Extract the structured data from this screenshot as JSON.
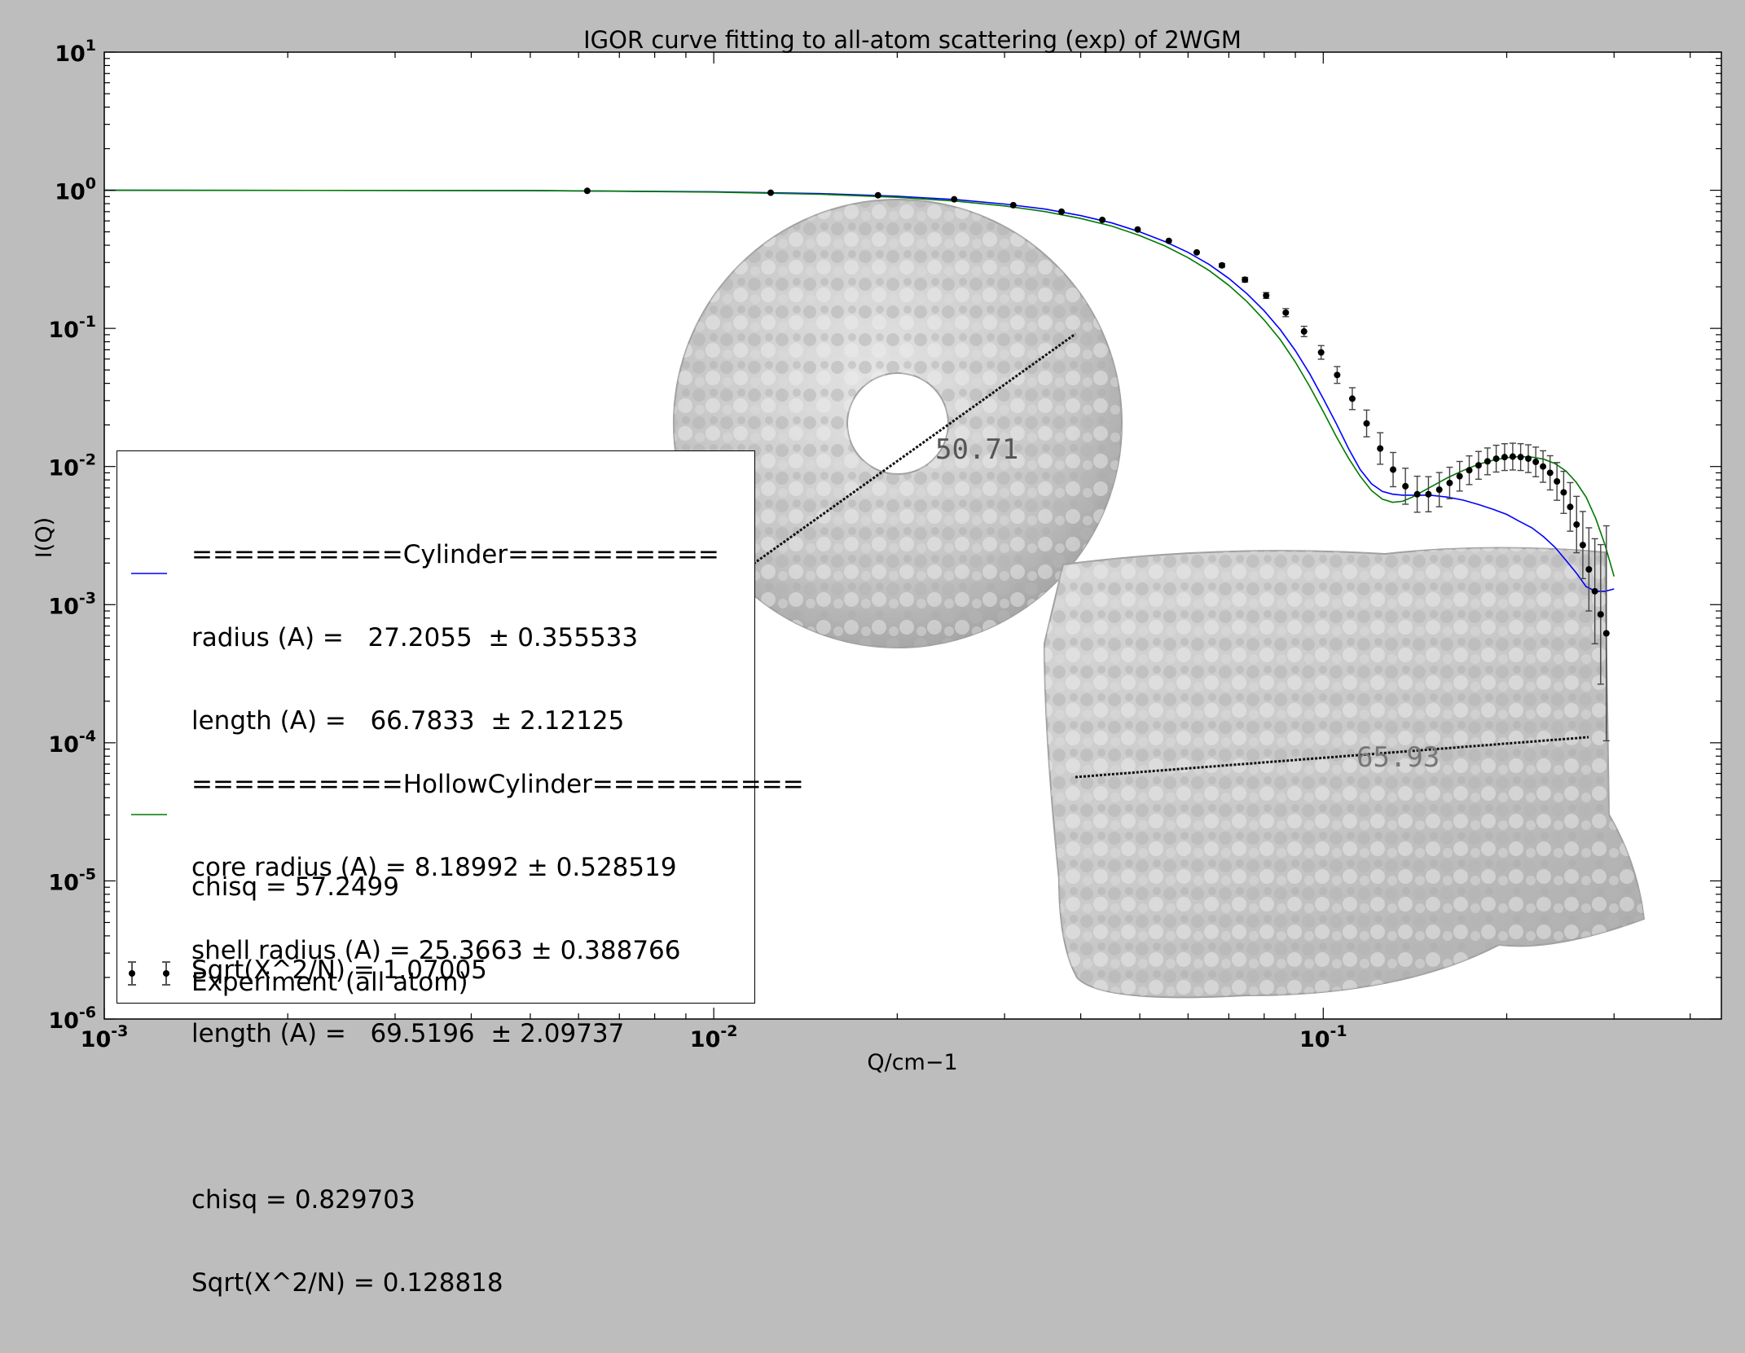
{
  "chart_data": {
    "type": "scatter",
    "title": "IGOR curve fitting to all-atom scattering (exp) of 2WGM",
    "xlabel": "Q/cm−1",
    "ylabel": "I(Q)",
    "x_scale": "log",
    "y_scale": "log",
    "xlim": [
      0.001,
      0.45
    ],
    "ylim": [
      1e-06,
      10
    ],
    "x_ticks": [
      {
        "value": 0.001,
        "base": "10",
        "exp": "-3"
      },
      {
        "value": 0.01,
        "base": "10",
        "exp": "-2"
      },
      {
        "value": 0.1,
        "base": "10",
        "exp": "-1"
      }
    ],
    "y_ticks": [
      {
        "value": 10,
        "base": "10",
        "exp": "1"
      },
      {
        "value": 1,
        "base": "10",
        "exp": "0"
      },
      {
        "value": 0.1,
        "base": "10",
        "exp": "-1"
      },
      {
        "value": 0.01,
        "base": "10",
        "exp": "-2"
      },
      {
        "value": 0.001,
        "base": "10",
        "exp": "-3"
      },
      {
        "value": 0.0001,
        "base": "10",
        "exp": "-4"
      },
      {
        "value": 1e-05,
        "base": "10",
        "exp": "-5"
      },
      {
        "value": 1e-06,
        "base": "10",
        "exp": "-6"
      }
    ],
    "grid": false,
    "legend": "lower-left",
    "series": [
      {
        "name": "Experiment (all atom)",
        "kind": "points-with-errorbars",
        "color": "#000000",
        "x": [
          0.0062,
          0.0124,
          0.0186,
          0.0248,
          0.031,
          0.0372,
          0.0434,
          0.0496,
          0.0558,
          0.062,
          0.0682,
          0.0744,
          0.0806,
          0.0868,
          0.093,
          0.0992,
          0.1054,
          0.1116,
          0.1178,
          0.124,
          0.1302,
          0.1364,
          0.1426,
          0.1488,
          0.155,
          0.1612,
          0.1674,
          0.1736,
          0.1798,
          0.186,
          0.1922,
          0.1984,
          0.2046,
          0.2108,
          0.217,
          0.2232,
          0.2294,
          0.2356,
          0.2418,
          0.248,
          0.2542,
          0.2604,
          0.2666,
          0.2728,
          0.279,
          0.2852,
          0.2914
        ],
        "y": [
          0.99,
          0.96,
          0.92,
          0.86,
          0.78,
          0.7,
          0.61,
          0.52,
          0.43,
          0.355,
          0.286,
          0.225,
          0.173,
          0.13,
          0.095,
          0.067,
          0.046,
          0.031,
          0.0205,
          0.0135,
          0.0095,
          0.0072,
          0.0063,
          0.0063,
          0.0068,
          0.0076,
          0.0085,
          0.0094,
          0.0102,
          0.0109,
          0.0114,
          0.0117,
          0.0118,
          0.0117,
          0.0114,
          0.0108,
          0.01,
          0.009,
          0.0078,
          0.0065,
          0.0051,
          0.0038,
          0.0027,
          0.0018,
          0.00125,
          0.00085,
          0.00062
        ],
        "err_factor": [
          1.01,
          1.01,
          1.01,
          1.01,
          1.01,
          1.01,
          1.01,
          1.015,
          1.015,
          1.02,
          1.03,
          1.04,
          1.05,
          1.07,
          1.09,
          1.12,
          1.15,
          1.2,
          1.25,
          1.3,
          1.33,
          1.35,
          1.35,
          1.34,
          1.33,
          1.3,
          1.28,
          1.27,
          1.26,
          1.25,
          1.25,
          1.25,
          1.25,
          1.25,
          1.26,
          1.28,
          1.3,
          1.33,
          1.37,
          1.42,
          1.5,
          1.6,
          1.75,
          2.0,
          2.4,
          3.2,
          6.0
        ]
      },
      {
        "name": "Cylinder",
        "kind": "line",
        "color": "#0000ff",
        "x": [
          0.001,
          0.005,
          0.01,
          0.015,
          0.02,
          0.025,
          0.03,
          0.035,
          0.04,
          0.045,
          0.05,
          0.055,
          0.06,
          0.065,
          0.07,
          0.075,
          0.08,
          0.085,
          0.09,
          0.095,
          0.1,
          0.105,
          0.11,
          0.115,
          0.12,
          0.125,
          0.13,
          0.135,
          0.14,
          0.15,
          0.16,
          0.17,
          0.18,
          0.19,
          0.2,
          0.21,
          0.22,
          0.23,
          0.24,
          0.25,
          0.26,
          0.27,
          0.28,
          0.29,
          0.3
        ],
        "y": [
          1.0,
          0.995,
          0.975,
          0.945,
          0.905,
          0.855,
          0.795,
          0.73,
          0.655,
          0.58,
          0.5,
          0.425,
          0.355,
          0.29,
          0.23,
          0.178,
          0.134,
          0.098,
          0.069,
          0.047,
          0.031,
          0.0205,
          0.0135,
          0.0095,
          0.0075,
          0.0066,
          0.0063,
          0.0062,
          0.0062,
          0.0062,
          0.006,
          0.0057,
          0.0053,
          0.0049,
          0.0045,
          0.004,
          0.0036,
          0.0031,
          0.0026,
          0.0021,
          0.0017,
          0.00135,
          0.00125,
          0.00125,
          0.0013
        ]
      },
      {
        "name": "HollowCylinder",
        "kind": "line",
        "color": "#007a00",
        "x": [
          0.001,
          0.005,
          0.01,
          0.015,
          0.02,
          0.025,
          0.03,
          0.035,
          0.04,
          0.045,
          0.05,
          0.055,
          0.06,
          0.065,
          0.07,
          0.075,
          0.08,
          0.085,
          0.09,
          0.095,
          0.1,
          0.105,
          0.11,
          0.115,
          0.12,
          0.125,
          0.13,
          0.135,
          0.14,
          0.15,
          0.16,
          0.17,
          0.18,
          0.19,
          0.2,
          0.21,
          0.22,
          0.23,
          0.24,
          0.25,
          0.26,
          0.27,
          0.28,
          0.29,
          0.3
        ],
        "y": [
          1.0,
          0.995,
          0.97,
          0.935,
          0.89,
          0.835,
          0.77,
          0.7,
          0.625,
          0.55,
          0.47,
          0.395,
          0.325,
          0.262,
          0.205,
          0.156,
          0.115,
          0.083,
          0.057,
          0.038,
          0.025,
          0.0165,
          0.0115,
          0.0085,
          0.0067,
          0.0058,
          0.0055,
          0.0056,
          0.006,
          0.0071,
          0.0083,
          0.0094,
          0.0104,
          0.0111,
          0.0116,
          0.0118,
          0.0117,
          0.0113,
          0.0105,
          0.0093,
          0.0077,
          0.006,
          0.0042,
          0.0027,
          0.0016
        ]
      }
    ],
    "annotations": [
      {
        "label": "50.71"
      },
      {
        "label": "65.93"
      }
    ]
  },
  "legend": {
    "cylinder": {
      "header": "==========Cylinder==========",
      "lines": [
        "radius (A) =   27.2055  ± 0.355533",
        "length (A) =   66.7833  ± 2.12125",
        "",
        "chisq = 57.2499",
        "Sqrt(X^2/N) = 1.07005"
      ]
    },
    "hollow": {
      "header": "==========HollowCylinder==========",
      "lines": [
        "core radius (A) = 8.18992 ± 0.528519",
        "shell radius (A) = 25.3663 ± 0.388766",
        "length (A) =   69.5196  ± 2.09737",
        "",
        "chisq = 0.829703",
        "Sqrt(X^2/N) = 0.128818"
      ]
    },
    "experiment_label": "Experiment (all atom)"
  }
}
